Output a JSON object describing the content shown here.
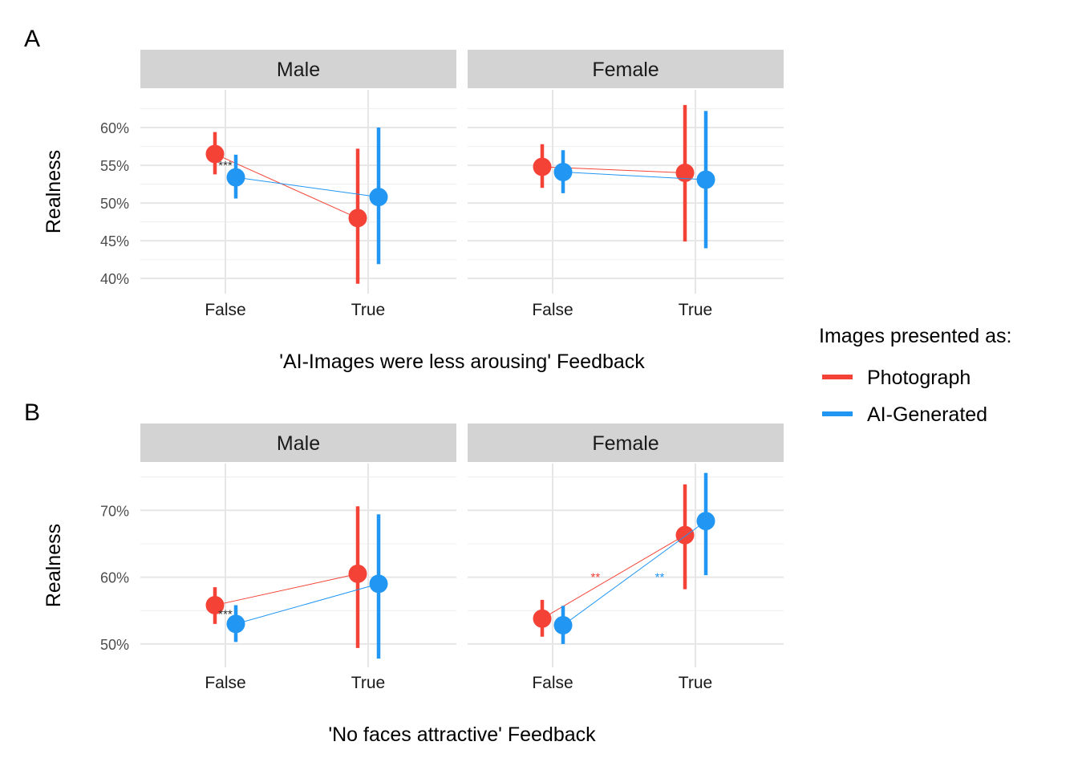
{
  "legend": {
    "title": "Images presented as:",
    "items": [
      {
        "label": "Photograph",
        "color": "#F44336"
      },
      {
        "label": "AI-Generated",
        "color": "#2196F3"
      }
    ]
  },
  "chart_data": [
    {
      "type": "pointrange",
      "tag": "A",
      "xlabel": "'AI-Images were less arousing' Feedback",
      "ylabel": "Realness",
      "categories": [
        "False",
        "True"
      ],
      "ylim": [
        38,
        65
      ],
      "yticks": [
        40,
        45,
        50,
        55,
        60
      ],
      "ytick_labels": [
        "40%",
        "45%",
        "50%",
        "55%",
        "60%"
      ],
      "facets": [
        {
          "name": "Male",
          "series": [
            {
              "name": "Photograph",
              "points": [
                {
                  "x": "False",
                  "y": 56.5,
                  "lower": 53.8,
                  "upper": 59.4
                },
                {
                  "x": "True",
                  "y": 48.0,
                  "lower": 39.3,
                  "upper": 57.2
                }
              ]
            },
            {
              "name": "AI-Generated",
              "points": [
                {
                  "x": "False",
                  "y": 53.4,
                  "lower": 50.6,
                  "upper": 56.4
                },
                {
                  "x": "True",
                  "y": 50.8,
                  "lower": 41.9,
                  "upper": 60.0
                }
              ]
            }
          ],
          "annotations": [
            {
              "text": "***",
              "x": "False",
              "y": 55.0,
              "color": "#333333"
            }
          ]
        },
        {
          "name": "Female",
          "series": [
            {
              "name": "Photograph",
              "points": [
                {
                  "x": "False",
                  "y": 54.8,
                  "lower": 52.0,
                  "upper": 57.8
                },
                {
                  "x": "True",
                  "y": 54.0,
                  "lower": 44.9,
                  "upper": 63.0
                }
              ]
            },
            {
              "name": "AI-Generated",
              "points": [
                {
                  "x": "False",
                  "y": 54.1,
                  "lower": 51.3,
                  "upper": 57.0
                },
                {
                  "x": "True",
                  "y": 53.1,
                  "lower": 44.0,
                  "upper": 62.2
                }
              ]
            }
          ],
          "annotations": []
        }
      ]
    },
    {
      "type": "pointrange",
      "tag": "B",
      "xlabel": "'No faces attractive' Feedback",
      "ylabel": "Realness",
      "categories": [
        "False",
        "True"
      ],
      "ylim": [
        46.5,
        77
      ],
      "yticks": [
        50,
        60,
        70
      ],
      "ytick_labels": [
        "50%",
        "60%",
        "70%"
      ],
      "facets": [
        {
          "name": "Male",
          "series": [
            {
              "name": "Photograph",
              "points": [
                {
                  "x": "False",
                  "y": 55.8,
                  "lower": 53.0,
                  "upper": 58.5
                },
                {
                  "x": "True",
                  "y": 60.5,
                  "lower": 49.4,
                  "upper": 70.6
                }
              ]
            },
            {
              "name": "AI-Generated",
              "points": [
                {
                  "x": "False",
                  "y": 53.0,
                  "lower": 50.3,
                  "upper": 55.8
                },
                {
                  "x": "True",
                  "y": 59.0,
                  "lower": 47.8,
                  "upper": 69.4
                }
              ]
            }
          ],
          "annotations": [
            {
              "text": "***",
              "x": "False",
              "y": 54.5,
              "color": "#333333"
            }
          ]
        },
        {
          "name": "Female",
          "series": [
            {
              "name": "Photograph",
              "points": [
                {
                  "x": "False",
                  "y": 53.8,
                  "lower": 51.1,
                  "upper": 56.6
                },
                {
                  "x": "True",
                  "y": 66.3,
                  "lower": 58.2,
                  "upper": 73.9
                }
              ]
            },
            {
              "name": "AI-Generated",
              "points": [
                {
                  "x": "False",
                  "y": 52.8,
                  "lower": 50.0,
                  "upper": 55.7
                },
                {
                  "x": "True",
                  "y": 68.4,
                  "lower": 60.3,
                  "upper": 75.6
                }
              ]
            }
          ],
          "annotations": [
            {
              "text": "**",
              "x": 0.3,
              "y": 60.0,
              "color": "#F44336"
            },
            {
              "text": "**",
              "x": 0.75,
              "y": 60.0,
              "color": "#2196F3"
            }
          ]
        }
      ]
    }
  ]
}
